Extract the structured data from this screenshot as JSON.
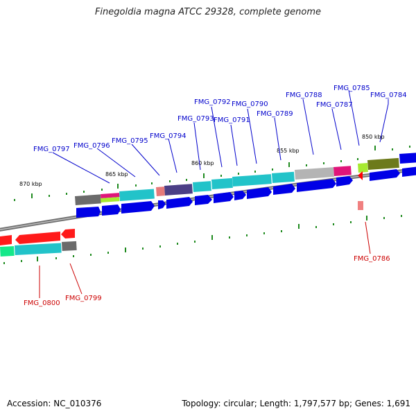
{
  "title": "Finegoldia magna ATCC 29328, complete genome",
  "footer": {
    "accession": "Accession: NC_010376",
    "summary": "Topology: circular; Length: 1,797,577 bp; Genes: 1,691"
  },
  "colors": {
    "backbone": "#8a8a8a",
    "forward_label": "#0000cc",
    "reverse_label": "#cc0000",
    "tick": "#1e8a1e",
    "cds_arrow": "#0000e6"
  },
  "kbp_markers": [
    "870 kbp",
    "865 kbp",
    "860 kbp",
    "855 kbp",
    "850 kbp"
  ],
  "forward_genes": [
    "FMG_0797",
    "FMG_0796",
    "FMG_0795",
    "FMG_0794",
    "FMG_0793",
    "FMG_0792",
    "FMG_0791",
    "FMG_0790",
    "FMG_0789",
    "FMG_0788",
    "FMG_0787",
    "FMG_0785",
    "FMG_0784"
  ],
  "reverse_genes": [
    "FMG_0800",
    "FMG_0799",
    "FMG_0786"
  ]
}
